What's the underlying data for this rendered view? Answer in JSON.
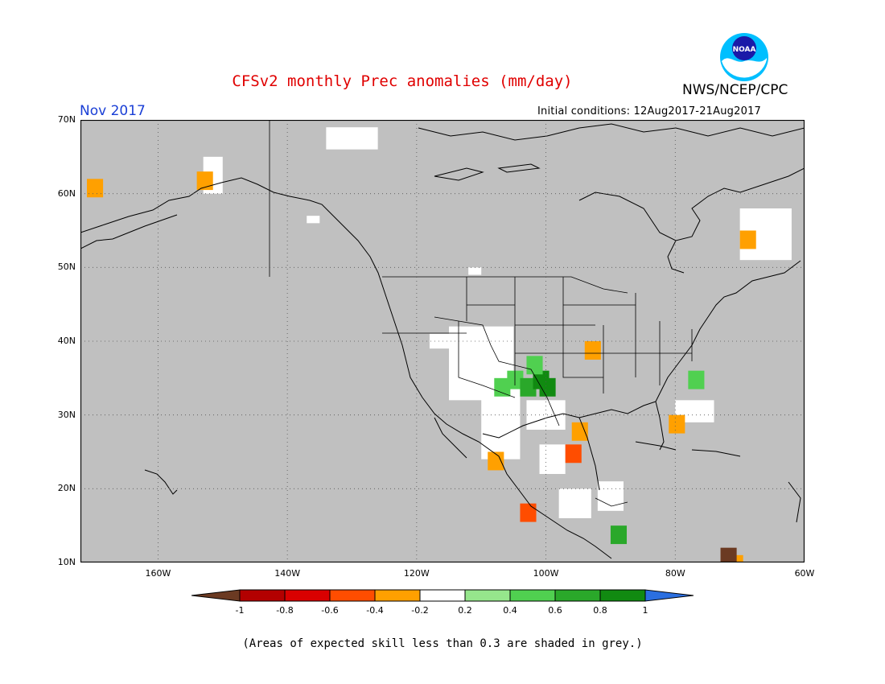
{
  "title": "CFSv2 monthly Prec anomalies (mm/day)",
  "agency": "NWS/NCEP/CPC",
  "logo_text": "NOAA",
  "valid_month": "Nov 2017",
  "initial_conditions": "Initial conditions: 12Aug2017-21Aug2017",
  "lat_labels": [
    "70N",
    "60N",
    "50N",
    "40N",
    "30N",
    "20N",
    "10N"
  ],
  "lon_labels": [
    "160W",
    "140W",
    "120W",
    "100W",
    "80W",
    "60W"
  ],
  "map_extent": {
    "lon": [
      -172,
      -60
    ],
    "lat": [
      10,
      70
    ]
  },
  "colorbar": {
    "labels": [
      "-1",
      "-0.8",
      "-0.6",
      "-0.4",
      "-0.2",
      "0.2",
      "0.4",
      "0.6",
      "0.8",
      "1"
    ],
    "colors": [
      "#6b3a22",
      "#b30000",
      "#d90000",
      "#ff4d00",
      "#ffa000",
      "#ffffff",
      "#96e68c",
      "#50d050",
      "#2aa82a",
      "#118a11",
      "#2b6fe0"
    ]
  },
  "skill_note": "(Areas of expected skill less than 0.3 are shaded in grey.)",
  "colors": {
    "grey": "#c0c0c0",
    "title": "#e00000",
    "month": "#1a3fd6"
  },
  "anomaly_cells": [
    {
      "lon": -108,
      "lat": 35,
      "v": 0.4
    },
    {
      "lon": -106,
      "lat": 36,
      "v": 0.4
    },
    {
      "lon": -104,
      "lat": 35,
      "v": 0.6
    },
    {
      "lon": -102,
      "lat": 36,
      "v": 0.8
    },
    {
      "lon": -101,
      "lat": 35,
      "v": 0.8
    },
    {
      "lon": -103,
      "lat": 38,
      "v": 0.4
    },
    {
      "lon": -94,
      "lat": 40,
      "v": -0.4
    },
    {
      "lon": -96,
      "lat": 29,
      "v": -0.4
    },
    {
      "lon": -97,
      "lat": 26,
      "v": -0.6
    },
    {
      "lon": -81,
      "lat": 30,
      "v": -0.4
    },
    {
      "lon": -78,
      "lat": 36,
      "v": 0.4
    },
    {
      "lon": -90,
      "lat": 15,
      "v": 0.6
    },
    {
      "lon": -70,
      "lat": 55,
      "v": -0.4
    },
    {
      "lon": -104,
      "lat": 18,
      "v": -0.6
    },
    {
      "lon": -109,
      "lat": 25,
      "v": -0.4
    },
    {
      "lon": -154,
      "lat": 63,
      "v": -0.4
    },
    {
      "lon": -171,
      "lat": 62,
      "v": -0.4
    },
    {
      "lon": -72,
      "lat": 11,
      "v": -0.4
    },
    {
      "lon": -73,
      "lat": 12,
      "v": -1.0
    }
  ]
}
